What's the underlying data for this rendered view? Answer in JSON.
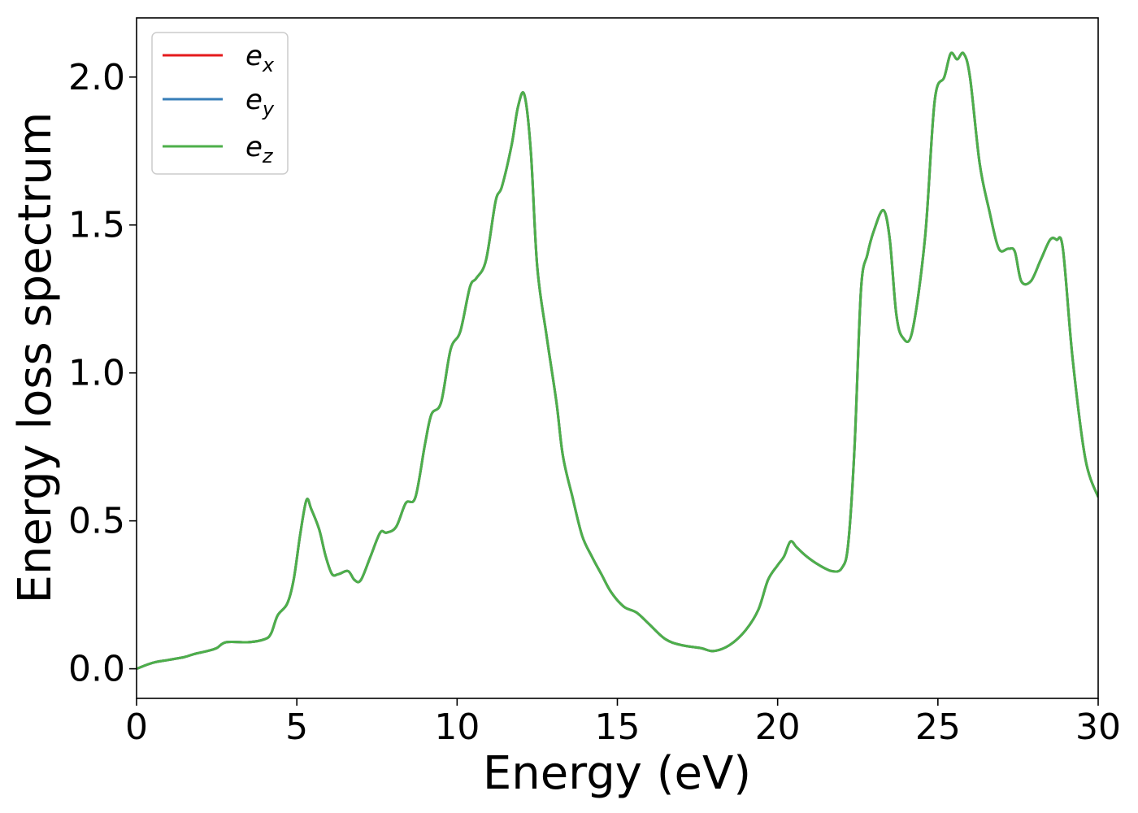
{
  "chart_data": {
    "type": "line",
    "title": "",
    "xlabel": "Energy (eV)",
    "ylabel": "Energy loss spectrum",
    "xlim": [
      0,
      30
    ],
    "ylim": [
      -0.1,
      2.2
    ],
    "xticks": [
      0,
      5,
      10,
      15,
      20,
      25,
      30
    ],
    "xtick_labels": [
      "0",
      "5",
      "10",
      "15",
      "20",
      "25",
      "30"
    ],
    "yticks": [
      0.0,
      0.5,
      1.0,
      1.5,
      2.0
    ],
    "ytick_labels": [
      "0.0",
      "0.5",
      "1.0",
      "1.5",
      "2.0"
    ],
    "grid": false,
    "legend_position": "top-left",
    "x": [
      0,
      0.5,
      1,
      1.5,
      1.8,
      2.2,
      2.5,
      2.8,
      3.5,
      4.0,
      4.2,
      4.4,
      4.7,
      4.9,
      5.1,
      5.3,
      5.45,
      5.7,
      5.9,
      6.1,
      6.3,
      6.6,
      6.8,
      7.0,
      7.3,
      7.6,
      7.8,
      8.1,
      8.4,
      8.7,
      9.0,
      9.2,
      9.5,
      9.8,
      10.1,
      10.4,
      10.6,
      10.9,
      11.2,
      11.4,
      11.7,
      11.9,
      12.1,
      12.3,
      12.5,
      12.8,
      13.1,
      13.3,
      13.6,
      13.9,
      14.2,
      14.5,
      14.8,
      15.2,
      15.6,
      16.0,
      16.5,
      17.0,
      17.6,
      18.0,
      18.5,
      19.0,
      19.4,
      19.7,
      20.0,
      20.2,
      20.4,
      20.6,
      20.9,
      21.3,
      21.7,
      22.0,
      22.2,
      22.4,
      22.6,
      22.8,
      23.0,
      23.3,
      23.5,
      23.7,
      23.9,
      24.2,
      24.6,
      24.9,
      25.2,
      25.4,
      25.6,
      25.8,
      26.0,
      26.3,
      26.6,
      26.9,
      27.2,
      27.4,
      27.6,
      27.9,
      28.2,
      28.5,
      28.7,
      28.9,
      29.2,
      29.6,
      30.0
    ],
    "series": [
      {
        "name": "e_x",
        "color": "#e41a1c"
      },
      {
        "name": "e_y",
        "color": "#377eb8"
      },
      {
        "name": "e_z",
        "color": "#4daf4a"
      }
    ],
    "y": [
      0.0,
      0.02,
      0.03,
      0.04,
      0.05,
      0.06,
      0.07,
      0.09,
      0.09,
      0.1,
      0.12,
      0.18,
      0.22,
      0.3,
      0.45,
      0.57,
      0.54,
      0.47,
      0.38,
      0.32,
      0.32,
      0.33,
      0.3,
      0.3,
      0.38,
      0.46,
      0.46,
      0.48,
      0.56,
      0.58,
      0.76,
      0.86,
      0.9,
      1.08,
      1.14,
      1.29,
      1.32,
      1.38,
      1.58,
      1.63,
      1.77,
      1.9,
      1.94,
      1.75,
      1.36,
      1.12,
      0.9,
      0.72,
      0.58,
      0.45,
      0.38,
      0.32,
      0.26,
      0.21,
      0.19,
      0.15,
      0.1,
      0.08,
      0.07,
      0.06,
      0.08,
      0.13,
      0.2,
      0.3,
      0.35,
      0.38,
      0.43,
      0.41,
      0.38,
      0.35,
      0.33,
      0.34,
      0.42,
      0.75,
      1.28,
      1.4,
      1.48,
      1.55,
      1.45,
      1.2,
      1.12,
      1.14,
      1.46,
      1.92,
      2.0,
      2.08,
      2.06,
      2.08,
      2.0,
      1.71,
      1.55,
      1.42,
      1.42,
      1.41,
      1.31,
      1.31,
      1.38,
      1.45,
      1.45,
      1.42,
      1.05,
      0.71,
      0.58
    ]
  },
  "legend": {
    "items": [
      {
        "base": "e",
        "sub": "x"
      },
      {
        "base": "e",
        "sub": "y"
      },
      {
        "base": "e",
        "sub": "z"
      }
    ]
  }
}
